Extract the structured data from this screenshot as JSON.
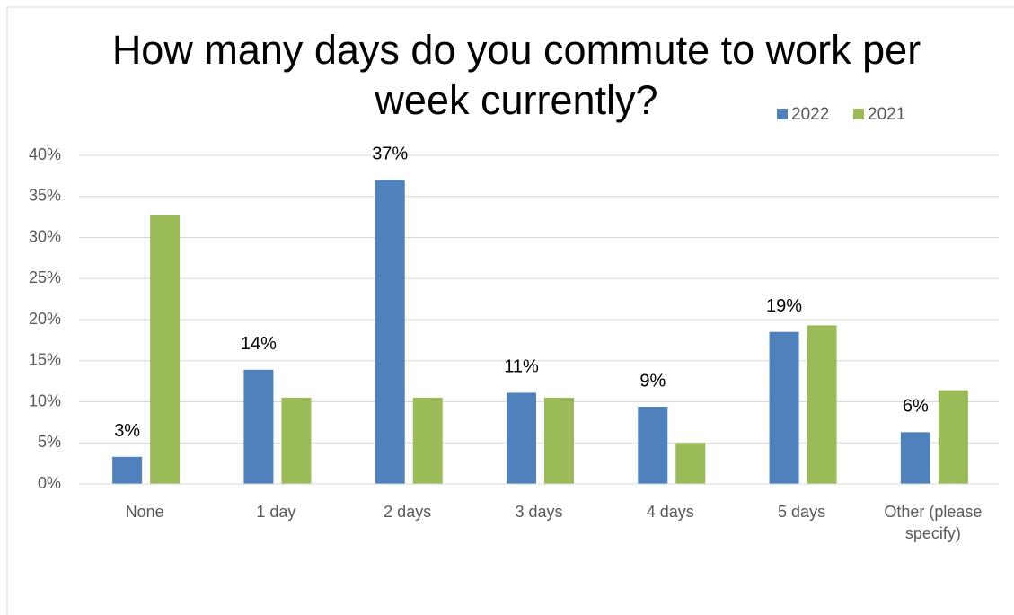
{
  "chart_data": {
    "type": "bar",
    "title": "How many days do you commute to work per week currently?",
    "categories": [
      "None",
      "1 day",
      "2 days",
      "3 days",
      "4 days",
      "5 days",
      "Other (please specify)"
    ],
    "series": [
      {
        "name": "2022",
        "color": "#4f81bd",
        "values": [
          3.3,
          13.9,
          37.0,
          11.1,
          9.4,
          18.5,
          6.3
        ],
        "value_labels": [
          "3%",
          "14%",
          "37%",
          "11%",
          "9%",
          "19%",
          "6%"
        ]
      },
      {
        "name": "2021",
        "color": "#9bbb59",
        "values": [
          32.7,
          10.5,
          10.5,
          10.5,
          5.0,
          19.3,
          11.4
        ]
      }
    ],
    "ylim": [
      0,
      40
    ],
    "yticks": [
      {
        "value": 0,
        "label": "0%"
      },
      {
        "value": 5,
        "label": "5%"
      },
      {
        "value": 10,
        "label": "10%"
      },
      {
        "value": 15,
        "label": "15%"
      },
      {
        "value": 20,
        "label": "20%"
      },
      {
        "value": 25,
        "label": "25%"
      },
      {
        "value": 30,
        "label": "30%"
      },
      {
        "value": 35,
        "label": "35%"
      },
      {
        "value": 40,
        "label": "40%"
      }
    ],
    "grid": true
  }
}
